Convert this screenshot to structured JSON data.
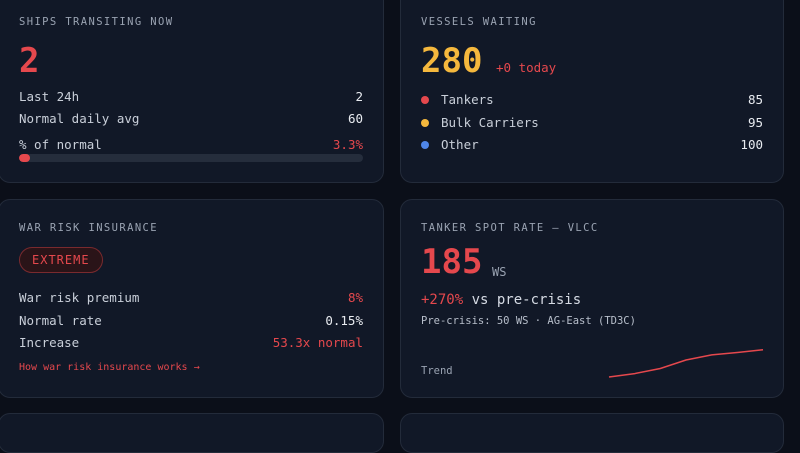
{
  "ships": {
    "title": "SHIPS TRANSITING NOW",
    "count": "2",
    "rows": [
      {
        "label": "Last 24h",
        "value": "2"
      },
      {
        "label": "Normal daily avg",
        "value": "60"
      },
      {
        "label": "% of normal",
        "value": "3.3%"
      }
    ],
    "progress_fraction": 0.033
  },
  "vessels": {
    "title": "VESSELS WAITING",
    "count": "280",
    "delta": "+0 today",
    "legend": [
      {
        "label": "Tankers",
        "value": "85",
        "color": "#e5484d"
      },
      {
        "label": "Bulk Carriers",
        "value": "95",
        "color": "#f5b83d"
      },
      {
        "label": "Other",
        "value": "100",
        "color": "#4f86e8"
      }
    ]
  },
  "insurance": {
    "title": "WAR RISK INSURANCE",
    "badge": "EXTREME",
    "rows": [
      {
        "label": "War risk premium",
        "value": "8%"
      },
      {
        "label": "Normal rate",
        "value": "0.15%"
      },
      {
        "label": "Increase",
        "value": "53.3x normal"
      }
    ],
    "link": "How war risk insurance works →"
  },
  "tanker": {
    "title": "TANKER SPOT RATE — VLCC",
    "rate": "185",
    "unit": "WS",
    "change_pct": "+270%",
    "change_text": "vs pre-crisis",
    "note": "Pre-crisis: 50 WS · AG-East (TD3C)",
    "trend_label": "Trend",
    "trend_color": "#e5484d",
    "trend_values": [
      0,
      0.1,
      0.25,
      0.5,
      0.65,
      0.72,
      0.8
    ]
  }
}
